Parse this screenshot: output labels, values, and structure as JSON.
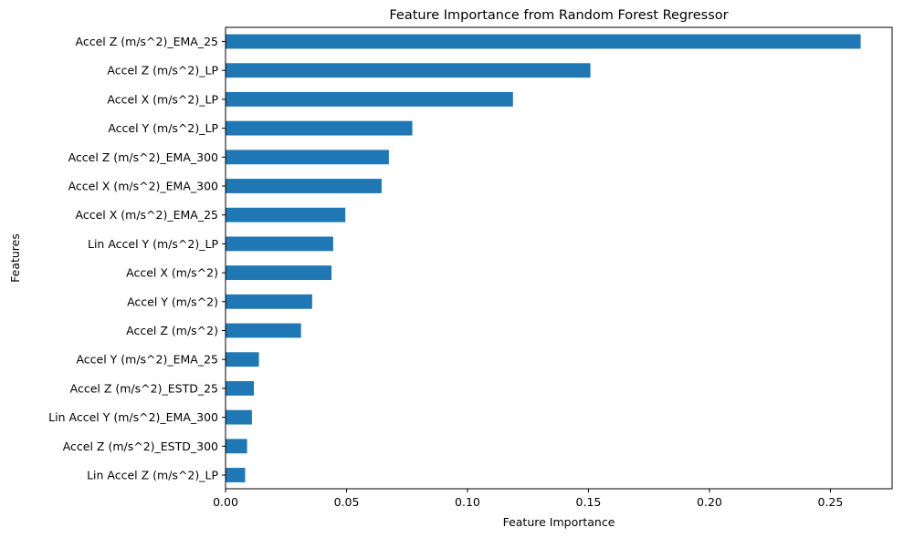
{
  "chart_data": {
    "type": "bar",
    "orientation": "horizontal",
    "title": "Feature Importance from Random Forest Regressor",
    "xlabel": "Feature Importance",
    "ylabel": "Features",
    "categories": [
      "Accel Z (m/s^2)_EMA_25",
      "Accel Z (m/s^2)_LP",
      "Accel X (m/s^2)_LP",
      "Accel Y (m/s^2)_LP",
      "Accel Z (m/s^2)_EMA_300",
      "Accel X (m/s^2)_EMA_300",
      "Accel X (m/s^2)_EMA_25",
      "Lin Accel Y (m/s^2)_LP",
      "Accel X (m/s^2)",
      "Accel Y (m/s^2)",
      "Accel Z (m/s^2)",
      "Accel Y (m/s^2)_EMA_25",
      "Accel Z (m/s^2)_ESTD_25",
      "Lin Accel Y (m/s^2)_EMA_300",
      "Accel Z (m/s^2)_ESTD_300",
      "Lin Accel Z (m/s^2)_LP"
    ],
    "values": [
      0.2625,
      0.1508,
      0.1188,
      0.0772,
      0.0675,
      0.0645,
      0.0495,
      0.0445,
      0.0438,
      0.0358,
      0.0312,
      0.0138,
      0.0117,
      0.0109,
      0.0089,
      0.0081
    ],
    "xlim": [
      0,
      0.2755
    ],
    "xticks": [
      "0.00",
      "0.05",
      "0.10",
      "0.15",
      "0.20",
      "0.25"
    ],
    "grid": false,
    "bar_color": "#1f77b4"
  }
}
